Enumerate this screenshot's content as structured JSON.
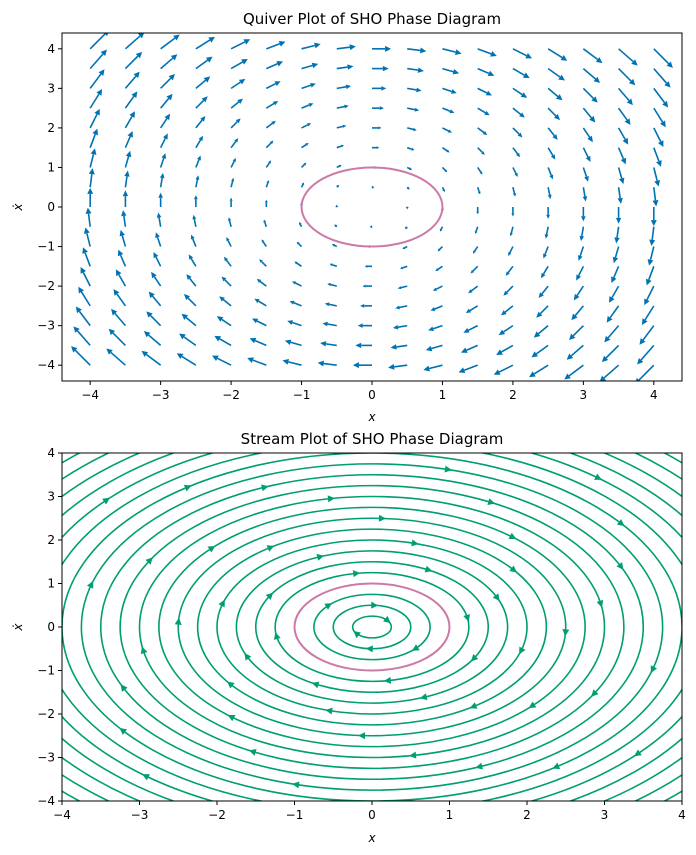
{
  "colors": {
    "quiver": "#0072b2",
    "stream": "#009e73",
    "orbit": "#cc79a7",
    "axes": "#000000"
  },
  "chart_data": [
    {
      "type": "quiver",
      "title": "Quiver Plot of SHO Phase Diagram",
      "xlabel": "x",
      "ylabel": "ẋ",
      "xlim": [
        -4.4,
        4.4
      ],
      "ylim": [
        -4.4,
        4.4
      ],
      "xticks": [
        -4,
        -3,
        -2,
        -1,
        0,
        1,
        2,
        3,
        4
      ],
      "yticks": [
        -4,
        -3,
        -2,
        -1,
        0,
        1,
        2,
        3,
        4
      ],
      "grid": false,
      "field": {
        "u": "xdot",
        "v": "-x",
        "x_range": [
          -4,
          4
        ],
        "y_range": [
          -4,
          4
        ],
        "n": 17
      },
      "orbit": {
        "shape": "circle",
        "radius": 1,
        "center": [
          0,
          0
        ]
      }
    },
    {
      "type": "stream",
      "title": "Stream Plot of SHO Phase Diagram",
      "xlabel": "x",
      "ylabel": "ẋ",
      "xlim": [
        -4,
        4
      ],
      "ylim": [
        -4,
        4
      ],
      "xticks": [
        -4,
        -3,
        -2,
        -1,
        0,
        1,
        2,
        3,
        4
      ],
      "yticks": [
        -4,
        -3,
        -2,
        -1,
        0,
        1,
        2,
        3,
        4
      ],
      "grid": false,
      "field": {
        "u": "xdot",
        "v": "-x"
      },
      "streamline_radii": [
        0.25,
        0.5,
        0.75,
        1.25,
        1.5,
        1.75,
        2.0,
        2.25,
        2.5,
        2.75,
        3.0,
        3.25,
        3.5,
        3.75,
        4.0,
        4.25,
        4.5,
        4.75,
        5.0,
        5.25,
        5.5
      ],
      "orbit": {
        "shape": "circle",
        "radius": 1,
        "center": [
          0,
          0
        ]
      }
    }
  ]
}
